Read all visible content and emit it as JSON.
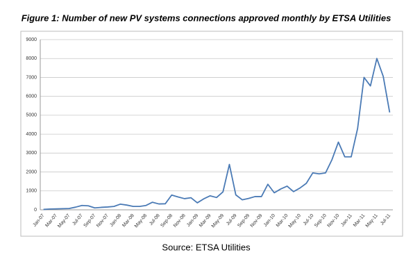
{
  "chart_data": {
    "type": "line",
    "title": "Figure 1: Number of new PV systems connections approved monthly by ETSA Utilities",
    "source": "Source: ETSA Utilities",
    "categories": [
      "Jan-07",
      null,
      "Mar-07",
      null,
      "May-07",
      null,
      "Jul-07",
      null,
      "Sep-07",
      null,
      "Nov-07",
      null,
      "Jan-08",
      null,
      "Mar-08",
      null,
      "May-08",
      null,
      "Jul-08",
      null,
      "Sep-08",
      null,
      "Nov-08",
      null,
      "Jan-09",
      null,
      "Mar-09",
      null,
      "May-09",
      null,
      "Jul-09",
      null,
      "Sep-09",
      null,
      "Nov-09",
      null,
      "Jan-10",
      null,
      "Mar-10",
      null,
      "May-10",
      null,
      "Jul-10",
      null,
      "Sep-10",
      null,
      "Nov-10",
      null,
      "Jan-11",
      null,
      "Mar-11",
      null,
      "May-11",
      null,
      "Jul-11"
    ],
    "values": [
      20,
      40,
      50,
      60,
      70,
      140,
      230,
      210,
      100,
      130,
      150,
      180,
      300,
      250,
      180,
      180,
      230,
      400,
      310,
      320,
      780,
      680,
      590,
      640,
      370,
      580,
      740,
      650,
      950,
      2400,
      790,
      530,
      600,
      700,
      700,
      1350,
      900,
      1100,
      1250,
      960,
      1150,
      1400,
      1950,
      1900,
      1950,
      2650,
      3580,
      2800,
      2800,
      4300,
      7000,
      6550,
      8000,
      7050,
      5150
    ],
    "color": "#4a7ab5",
    "ylim": [
      0,
      9000
    ],
    "yticks": [
      0,
      1000,
      2000,
      3000,
      4000,
      5000,
      6000,
      7000,
      8000,
      9000
    ],
    "grid": true
  }
}
